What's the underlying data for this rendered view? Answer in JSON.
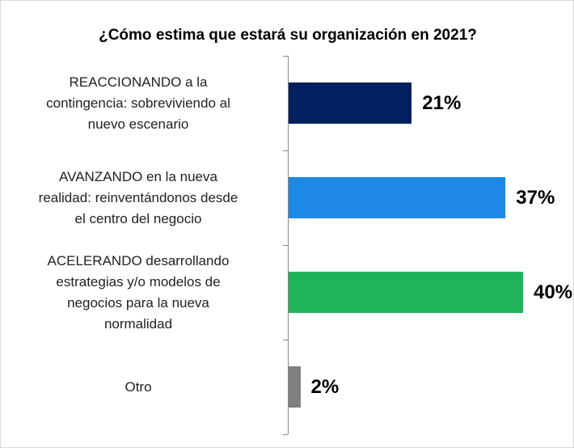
{
  "chart_data": {
    "type": "bar",
    "orientation": "horizontal",
    "title": "¿Cómo estima que estará su organización en 2021?",
    "categories": [
      "REACCIONANDO a la\ncontingencia: sobreviviendo al\nnuevo escenario",
      "AVANZANDO en la nueva\nrealidad: reinventándonos desde\nel centro del negocio",
      "ACELERANDO desarrollando\nestrategias y/o modelos de\nnegocios para la nueva\nnormalidad",
      "Otro"
    ],
    "values": [
      21,
      37,
      40,
      2
    ],
    "value_labels": [
      "21%",
      "37%",
      "40%",
      "2%"
    ],
    "colors": [
      "#002060",
      "#1e88e5",
      "#1fb45a",
      "#808080"
    ]
  }
}
